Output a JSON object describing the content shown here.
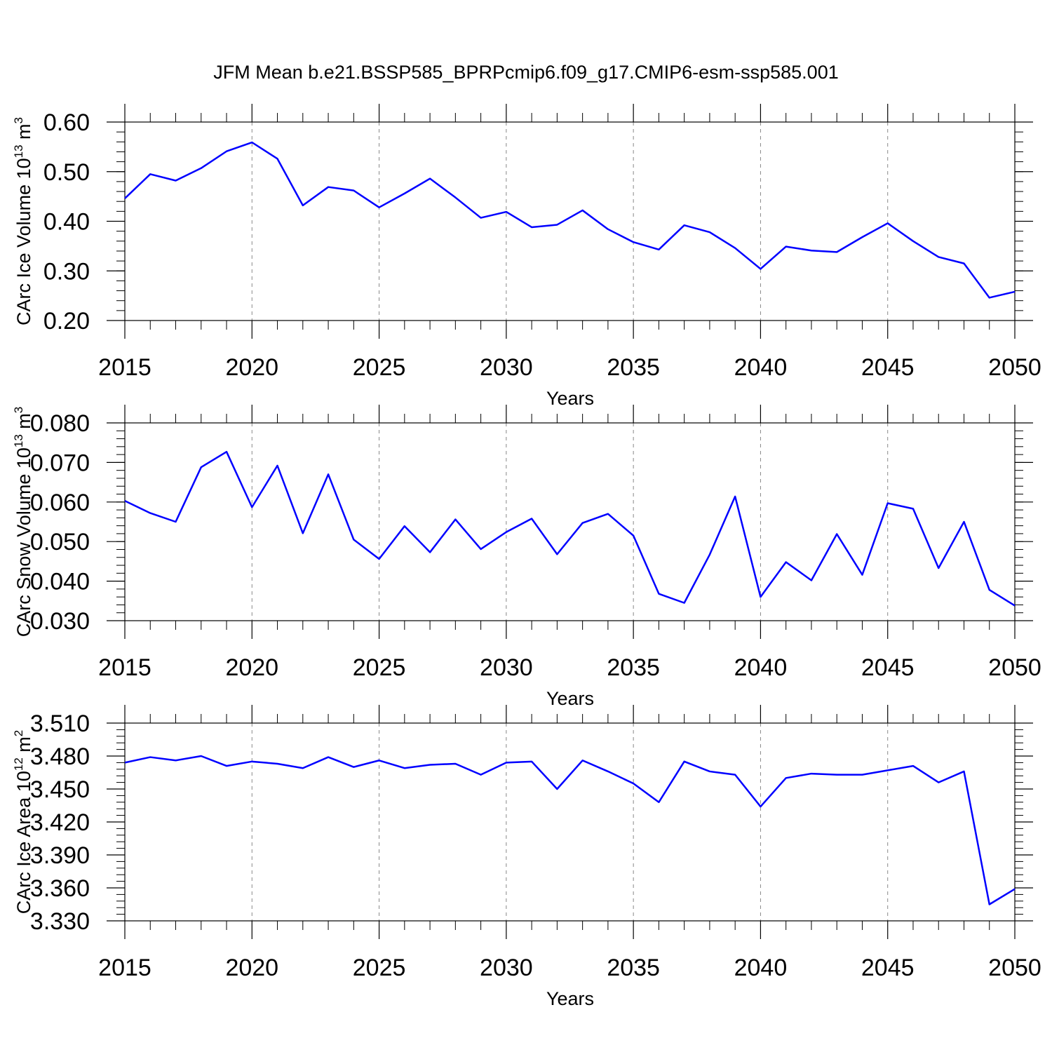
{
  "figure": {
    "title": "JFM Mean b.e21.BSSP585_BPRPcmip6.f09_g17.CMIP6-esm-ssp585.001",
    "line_color": "#0000ff",
    "grid_color": "#888888"
  },
  "chart_data": [
    {
      "type": "line",
      "title": "JFM Mean b.e21.BSSP585_BPRPcmip6.f09_g17.CMIP6-esm-ssp585.001",
      "xlabel": "Years",
      "ylabel": "CArc Ice Volume 10",
      "ylabel_sup": "13",
      "ylabel_unit": " m",
      "ylabel_unit_sup": "3",
      "xlim": [
        2015,
        2050
      ],
      "ylim": [
        0.2,
        0.6
      ],
      "x_ticks": [
        2015,
        2020,
        2025,
        2030,
        2035,
        2040,
        2045,
        2050
      ],
      "x_tick_labels": [
        "2015",
        "2020",
        "2025",
        "2030",
        "2035",
        "2040",
        "2045",
        "2050"
      ],
      "y_ticks": [
        0.2,
        0.3,
        0.4,
        0.5,
        0.6
      ],
      "y_tick_labels": [
        "0.20",
        "0.30",
        "0.40",
        "0.50",
        "0.60"
      ],
      "y_minor_step": 0.02,
      "grid": "vertical dashed at major x ticks",
      "x": [
        2015,
        2016,
        2017,
        2018,
        2019,
        2020,
        2021,
        2022,
        2023,
        2024,
        2025,
        2026,
        2027,
        2028,
        2029,
        2030,
        2031,
        2032,
        2033,
        2034,
        2035,
        2036,
        2037,
        2038,
        2039,
        2040,
        2041,
        2042,
        2043,
        2044,
        2045,
        2046,
        2047,
        2048,
        2049,
        2050
      ],
      "series": [
        {
          "values": [
            0.446,
            0.495,
            0.482,
            0.507,
            0.541,
            0.559,
            0.526,
            0.432,
            0.469,
            0.462,
            0.428,
            0.456,
            0.486,
            0.448,
            0.407,
            0.419,
            0.388,
            0.393,
            0.422,
            0.384,
            0.358,
            0.343,
            0.392,
            0.378,
            0.346,
            0.304,
            0.349,
            0.341,
            0.338,
            0.368,
            0.396,
            0.36,
            0.328,
            0.315,
            0.246,
            0.258
          ]
        }
      ]
    },
    {
      "type": "line",
      "xlabel": "Years",
      "ylabel": "CArc Snow Volume 10",
      "ylabel_sup": "13",
      "ylabel_unit": " m",
      "ylabel_unit_sup": "3",
      "xlim": [
        2015,
        2050
      ],
      "ylim": [
        0.03,
        0.08
      ],
      "x_ticks": [
        2015,
        2020,
        2025,
        2030,
        2035,
        2040,
        2045,
        2050
      ],
      "x_tick_labels": [
        "2015",
        "2020",
        "2025",
        "2030",
        "2035",
        "2040",
        "2045",
        "2050"
      ],
      "y_ticks": [
        0.03,
        0.04,
        0.05,
        0.06,
        0.07,
        0.08
      ],
      "y_tick_labels": [
        "0.030",
        "0.040",
        "0.050",
        "0.060",
        "0.070",
        "0.080"
      ],
      "y_minor_step": 0.002,
      "grid": "vertical dashed at major x ticks",
      "x": [
        2015,
        2016,
        2017,
        2018,
        2019,
        2020,
        2021,
        2022,
        2023,
        2024,
        2025,
        2026,
        2027,
        2028,
        2029,
        2030,
        2031,
        2032,
        2033,
        2034,
        2035,
        2036,
        2037,
        2038,
        2039,
        2040,
        2041,
        2042,
        2043,
        2044,
        2045,
        2046,
        2047,
        2048,
        2049,
        2050
      ],
      "series": [
        {
          "values": [
            0.0603,
            0.0572,
            0.055,
            0.0688,
            0.0727,
            0.0587,
            0.0692,
            0.0521,
            0.067,
            0.0505,
            0.0456,
            0.0539,
            0.0473,
            0.0556,
            0.0481,
            0.0524,
            0.0558,
            0.0468,
            0.0547,
            0.057,
            0.0515,
            0.0368,
            0.0345,
            0.0467,
            0.0614,
            0.036,
            0.0448,
            0.0402,
            0.0519,
            0.0416,
            0.0597,
            0.0583,
            0.0433,
            0.055,
            0.0378,
            0.0338
          ]
        }
      ]
    },
    {
      "type": "line",
      "xlabel": "Years",
      "ylabel": "CArc Ice Area 10",
      "ylabel_sup": "12",
      "ylabel_unit": " m",
      "ylabel_unit_sup": "2",
      "xlim": [
        2015,
        2050
      ],
      "ylim": [
        3.33,
        3.51
      ],
      "x_ticks": [
        2015,
        2020,
        2025,
        2030,
        2035,
        2040,
        2045,
        2050
      ],
      "x_tick_labels": [
        "2015",
        "2020",
        "2025",
        "2030",
        "2035",
        "2040",
        "2045",
        "2050"
      ],
      "y_ticks": [
        3.33,
        3.36,
        3.39,
        3.42,
        3.45,
        3.48,
        3.51
      ],
      "y_tick_labels": [
        "3.330",
        "3.360",
        "3.390",
        "3.420",
        "3.450",
        "3.480",
        "3.510"
      ],
      "y_minor_step": 0.006,
      "grid": "vertical dashed at major x ticks",
      "x": [
        2015,
        2016,
        2017,
        2018,
        2019,
        2020,
        2021,
        2022,
        2023,
        2024,
        2025,
        2026,
        2027,
        2028,
        2029,
        2030,
        2031,
        2032,
        2033,
        2034,
        2035,
        2036,
        2037,
        2038,
        2039,
        2040,
        2041,
        2042,
        2043,
        2044,
        2045,
        2046,
        2047,
        2048,
        2049,
        2050
      ],
      "series": [
        {
          "values": [
            3.474,
            3.479,
            3.476,
            3.48,
            3.471,
            3.475,
            3.473,
            3.469,
            3.479,
            3.47,
            3.476,
            3.469,
            3.472,
            3.473,
            3.463,
            3.474,
            3.475,
            3.45,
            3.476,
            3.466,
            3.455,
            3.438,
            3.475,
            3.466,
            3.463,
            3.434,
            3.46,
            3.464,
            3.463,
            3.463,
            3.467,
            3.471,
            3.456,
            3.466,
            3.345,
            3.359
          ]
        }
      ]
    }
  ]
}
